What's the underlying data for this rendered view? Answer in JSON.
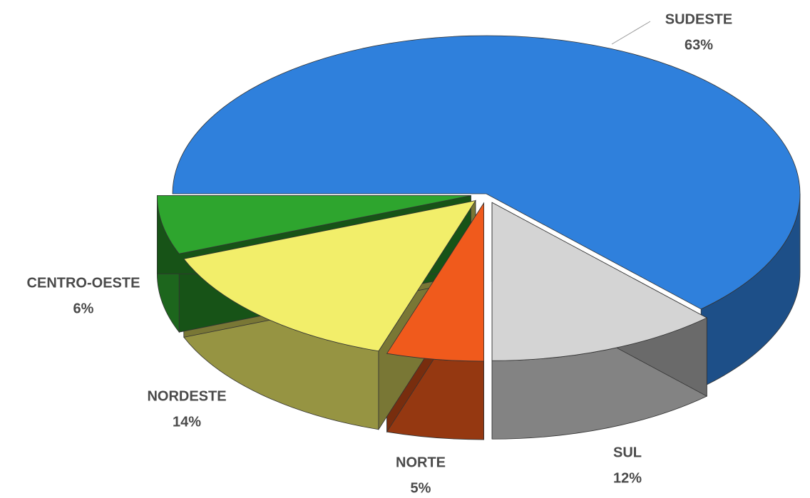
{
  "chart_data": {
    "type": "pie",
    "categories": [
      "SUDESTE",
      "SUL",
      "NORTE",
      "NORDESTE",
      "CENTRO-OESTE"
    ],
    "values": [
      63,
      12,
      5,
      14,
      6
    ],
    "value_labels": [
      "63%",
      "12%",
      "5%",
      "14%",
      "6%"
    ],
    "colors": [
      "#2f80dc",
      "#d4d4d4",
      "#f05a1c",
      "#f2ee6a",
      "#2ea52e"
    ]
  }
}
